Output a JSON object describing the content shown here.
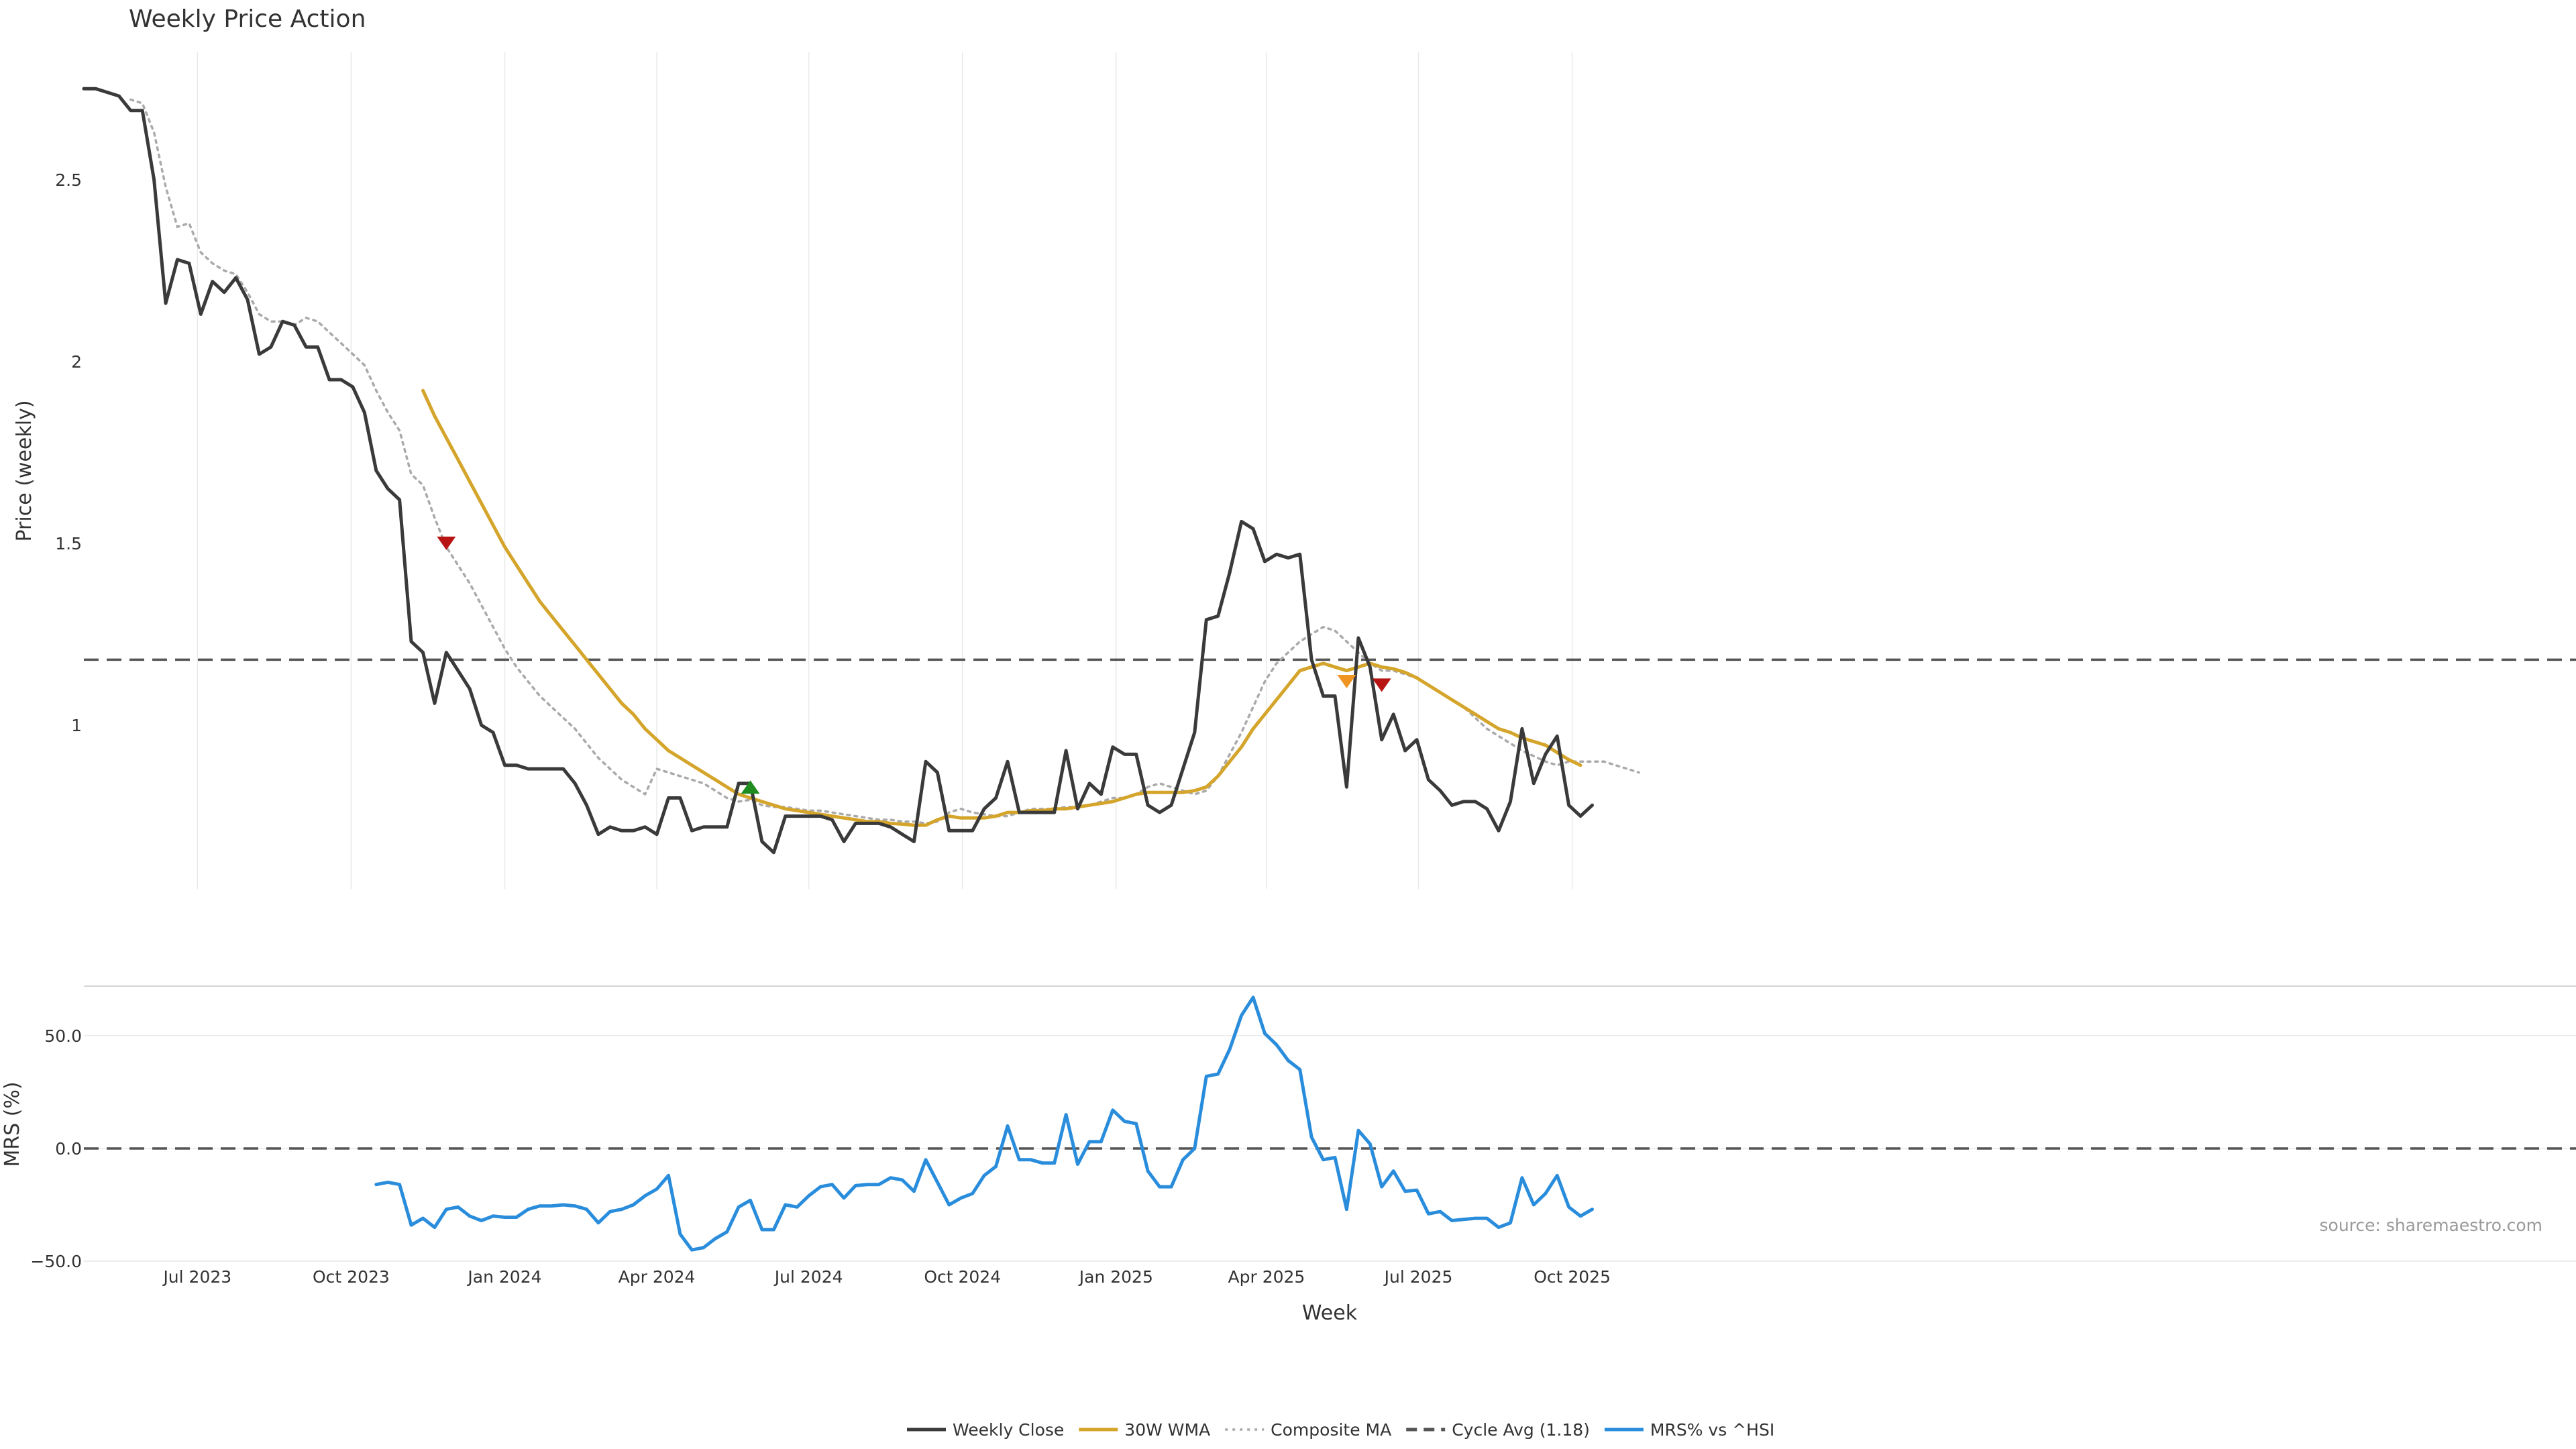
{
  "chart_data": [
    {
      "type": "line",
      "title": "Weekly Price Action",
      "xlabel": "",
      "ylabel": "Price (weekly)",
      "x_start": "2023-04-24",
      "x_tick_labels": [
        "Jul 2023",
        "Oct 2023",
        "Jan 2024",
        "Apr 2024",
        "Jul 2024",
        "Oct 2024",
        "Jan 2025",
        "Apr 2025",
        "Jul 2025",
        "Oct 2025"
      ],
      "x_tick_dates": [
        "2023-07-01",
        "2023-10-01",
        "2024-01-01",
        "2024-04-01",
        "2024-07-01",
        "2024-10-01",
        "2025-01-01",
        "2025-04-01",
        "2025-07-01",
        "2025-10-01"
      ],
      "ylim": [
        0.55,
        2.85
      ],
      "yticks": [
        1,
        1.5,
        2,
        2.5
      ],
      "ytick_labels": [
        "1",
        "1.5",
        "2",
        "2.5"
      ],
      "grid": "vertical",
      "series": [
        {
          "name": "Weekly Close",
          "color": "#3a3a3a",
          "style": "solid",
          "start_index": 0,
          "values": [
            2.75,
            2.75,
            2.74,
            2.73,
            2.69,
            2.69,
            2.5,
            2.16,
            2.28,
            2.27,
            2.13,
            2.22,
            2.19,
            2.23,
            2.17,
            2.02,
            2.04,
            2.11,
            2.1,
            2.04,
            2.04,
            1.95,
            1.95,
            1.93,
            1.86,
            1.7,
            1.65,
            1.62,
            1.23,
            1.2,
            1.06,
            1.2,
            1.15,
            1.1,
            1.0,
            0.98,
            0.89,
            0.89,
            0.88,
            0.88,
            0.88,
            0.88,
            0.84,
            0.78,
            0.7,
            0.72,
            0.71,
            0.71,
            0.72,
            0.7,
            0.8,
            0.8,
            0.71,
            0.72,
            0.72,
            0.72,
            0.84,
            0.84,
            0.68,
            0.65,
            0.75,
            0.75,
            0.75,
            0.75,
            0.74,
            0.68,
            0.73,
            0.73,
            0.73,
            0.72,
            0.7,
            0.68,
            0.9,
            0.87,
            0.71,
            0.71,
            0.71,
            0.77,
            0.8,
            0.9,
            0.76,
            0.76,
            0.76,
            0.76,
            0.93,
            0.77,
            0.84,
            0.81,
            0.94,
            0.92,
            0.92,
            0.78,
            0.76,
            0.78,
            0.88,
            0.98,
            1.29,
            1.3,
            1.42,
            1.56,
            1.54,
            1.45,
            1.47,
            1.46,
            1.47,
            1.18,
            1.08,
            1.08,
            0.83,
            1.24,
            1.16,
            0.96,
            1.03,
            0.93,
            0.96,
            0.85,
            0.82,
            0.78,
            0.79,
            0.79,
            0.77,
            0.71,
            0.79,
            0.99,
            0.84,
            0.92,
            0.97,
            0.78,
            0.75,
            0.78
          ]
        },
        {
          "name": "30W WMA",
          "color": "#d4a52a",
          "style": "solid",
          "start_index": 29,
          "values": [
            1.92,
            1.85,
            1.79,
            1.73,
            1.67,
            1.61,
            1.55,
            1.49,
            1.44,
            1.39,
            1.34,
            1.3,
            1.26,
            1.22,
            1.18,
            1.14,
            1.1,
            1.06,
            1.03,
            0.99,
            0.96,
            0.93,
            0.91,
            0.89,
            0.87,
            0.85,
            0.83,
            0.81,
            0.8,
            0.79,
            0.78,
            0.77,
            0.765,
            0.76,
            0.755,
            0.75,
            0.745,
            0.74,
            0.735,
            0.735,
            0.73,
            0.728,
            0.725,
            0.725,
            0.74,
            0.75,
            0.745,
            0.745,
            0.745,
            0.75,
            0.76,
            0.76,
            0.765,
            0.765,
            0.77,
            0.77,
            0.775,
            0.78,
            0.785,
            0.79,
            0.8,
            0.81,
            0.815,
            0.815,
            0.815,
            0.815,
            0.82,
            0.83,
            0.86,
            0.9,
            0.94,
            0.99,
            1.03,
            1.07,
            1.11,
            1.15,
            1.16,
            1.17,
            1.16,
            1.15,
            1.16,
            1.17,
            1.16,
            1.155,
            1.145,
            1.13,
            1.11,
            1.09,
            1.07,
            1.05,
            1.03,
            1.01,
            0.99,
            0.98,
            0.965,
            0.955,
            0.945,
            0.925,
            0.905,
            0.89
          ]
        },
        {
          "name": "Composite MA",
          "color": "#aaaaaa",
          "style": "dotted",
          "start_index": 4,
          "values": [
            2.72,
            2.71,
            2.63,
            2.48,
            2.37,
            2.38,
            2.3,
            2.27,
            2.25,
            2.24,
            2.19,
            2.13,
            2.11,
            2.11,
            2.1,
            2.12,
            2.11,
            2.08,
            2.05,
            2.02,
            1.99,
            1.92,
            1.86,
            1.81,
            1.69,
            1.66,
            1.57,
            1.49,
            1.44,
            1.39,
            1.33,
            1.27,
            1.21,
            1.16,
            1.12,
            1.08,
            1.05,
            1.02,
            0.99,
            0.95,
            0.91,
            0.88,
            0.85,
            0.83,
            0.81,
            0.88,
            0.87,
            0.86,
            0.85,
            0.84,
            0.82,
            0.8,
            0.79,
            0.795,
            0.78,
            0.775,
            0.775,
            0.77,
            0.765,
            0.765,
            0.76,
            0.755,
            0.75,
            0.745,
            0.74,
            0.74,
            0.735,
            0.735,
            0.73,
            0.735,
            0.76,
            0.77,
            0.76,
            0.755,
            0.75,
            0.75,
            0.76,
            0.77,
            0.77,
            0.77,
            0.775,
            0.775,
            0.78,
            0.79,
            0.8,
            0.8,
            0.81,
            0.83,
            0.84,
            0.83,
            0.82,
            0.81,
            0.82,
            0.86,
            0.92,
            0.98,
            1.05,
            1.12,
            1.17,
            1.2,
            1.23,
            1.25,
            1.27,
            1.26,
            1.23,
            1.2,
            1.17,
            1.15,
            1.15,
            1.14,
            1.13,
            1.11,
            1.09,
            1.07,
            1.05,
            1.02,
            0.99,
            0.97,
            0.95,
            0.93,
            0.915,
            0.9,
            0.89,
            0.9,
            0.9,
            0.9,
            0.9,
            0.89,
            0.88,
            0.87
          ]
        }
      ],
      "reference_lines": [
        {
          "name": "Cycle Avg (1.18)",
          "value": 1.18,
          "color": "#555555",
          "style": "dashed"
        }
      ],
      "markers": [
        {
          "index": 31,
          "value": 1.5,
          "shape": "triangle-down",
          "color": "#b81414"
        },
        {
          "index": 57,
          "value": 0.83,
          "shape": "triangle-up",
          "color": "#1e8c1e"
        },
        {
          "index": 108,
          "value": 1.12,
          "shape": "triangle-down",
          "color": "#f09422"
        },
        {
          "index": 111,
          "value": 1.11,
          "shape": "triangle-down",
          "color": "#b81414"
        }
      ]
    },
    {
      "type": "line",
      "title": "",
      "xlabel": "Week",
      "ylabel": "MRS (%)",
      "ylim": [
        -50,
        72
      ],
      "yticks": [
        -50,
        0,
        50
      ],
      "ytick_labels": [
        "−50.0",
        "0.0",
        "50.0"
      ],
      "grid": "horizontal",
      "series": [
        {
          "name": "MRS% vs ^HSI",
          "color": "#2a8ddc",
          "style": "solid",
          "start_index": 25,
          "values": [
            -16,
            -15,
            -16,
            -34,
            -31,
            -35,
            -27,
            -26,
            -30,
            -32,
            -30,
            -30.5,
            -30.5,
            -27,
            -25.5,
            -25.5,
            -25,
            -25.5,
            -27,
            -33,
            -28,
            -27,
            -25,
            -21,
            -18,
            -12,
            -38,
            -45,
            -44,
            -40,
            -37,
            -26,
            -23,
            -36,
            -36,
            -25,
            -26,
            -21,
            -17,
            -16,
            -22,
            -16.5,
            -16,
            -16,
            -13,
            -14,
            -19,
            -5,
            -15,
            -25,
            -22,
            -20,
            -12,
            -8,
            10,
            -5,
            -5,
            -6.5,
            -6.5,
            15,
            -7,
            3,
            3,
            17,
            12,
            11,
            -10,
            -17,
            -17,
            -5,
            0,
            32,
            33,
            44,
            59,
            67,
            51,
            46,
            39,
            35,
            5,
            -5,
            -4,
            -27,
            8,
            2,
            -17,
            -10,
            -19,
            -18.5,
            -29,
            -28,
            -32,
            -31.5,
            -31,
            -31,
            -35,
            -33,
            -13,
            -25,
            -20,
            -12,
            -26,
            -30,
            -27
          ]
        }
      ],
      "reference_lines": [
        {
          "value": 0,
          "color": "#555555",
          "style": "dashed"
        }
      ]
    }
  ],
  "legend": {
    "placement": "bottom-center",
    "items": [
      {
        "label": "Weekly Close",
        "color": "#3a3a3a",
        "style": "solid"
      },
      {
        "label": "30W WMA",
        "color": "#d4a52a",
        "style": "solid"
      },
      {
        "label": "Composite MA",
        "color": "#aaaaaa",
        "style": "dotted"
      },
      {
        "label": "Cycle Avg (1.18)",
        "color": "#555555",
        "style": "dashed"
      },
      {
        "label": "MRS% vs ^HSI",
        "color": "#2a8ddc",
        "style": "solid"
      }
    ]
  },
  "watermark": "source: sharemaestro.com"
}
